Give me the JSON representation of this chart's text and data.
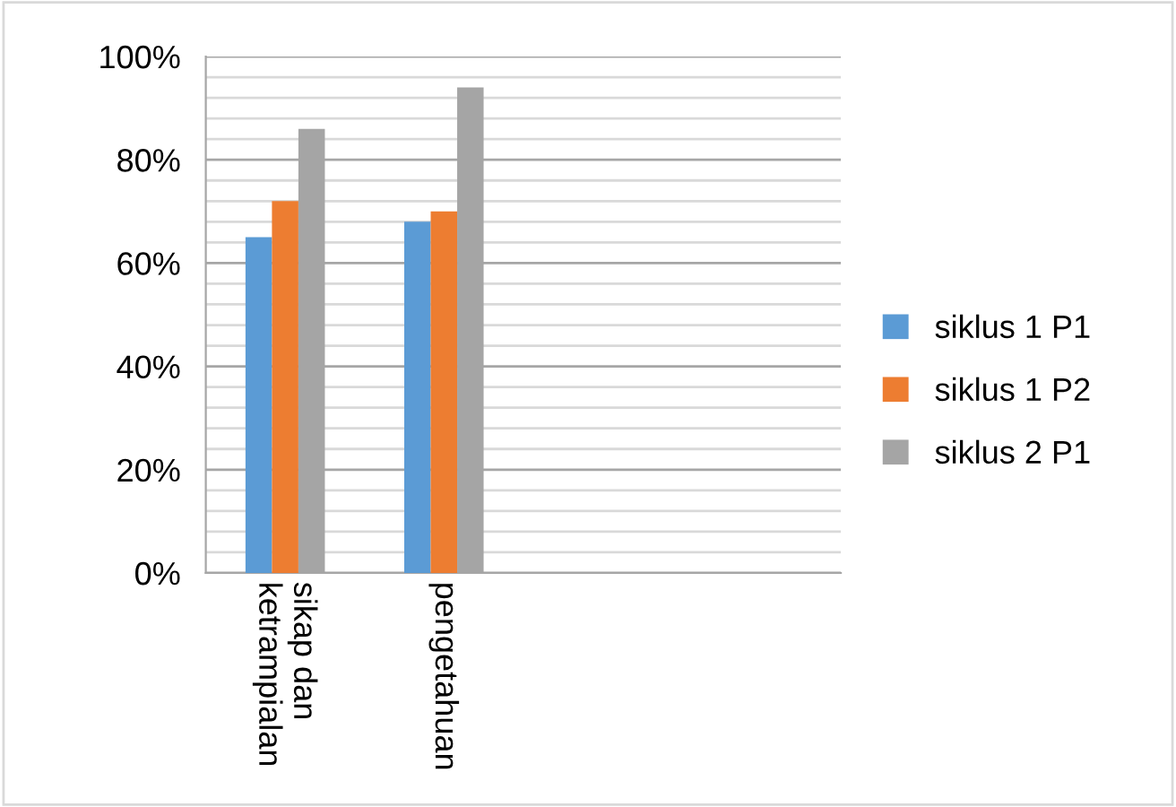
{
  "chart_data": {
    "type": "bar",
    "categories": [
      "sikap dan\nketrampialan",
      "pengetahuan",
      null,
      null
    ],
    "series": [
      {
        "name": "siklus 1 P1",
        "color": "#5b9bd5",
        "values": [
          65,
          68,
          null,
          null
        ]
      },
      {
        "name": "siklus 1 P2",
        "color": "#ed7d31",
        "values": [
          72,
          70,
          null,
          null
        ]
      },
      {
        "name": "siklus 2 P1",
        "color": "#a5a5a5",
        "values": [
          86,
          94,
          null,
          null
        ]
      }
    ],
    "ylim": [
      0,
      100
    ],
    "yticks": [
      {
        "value": 0,
        "label": "0%"
      },
      {
        "value": 4,
        "label": null
      },
      {
        "value": 8,
        "label": null
      },
      {
        "value": 12,
        "label": null
      },
      {
        "value": 16,
        "label": null
      },
      {
        "value": 20,
        "label": "20%"
      },
      {
        "value": 24,
        "label": null
      },
      {
        "value": 28,
        "label": null
      },
      {
        "value": 32,
        "label": null
      },
      {
        "value": 36,
        "label": null
      },
      {
        "value": 40,
        "label": "40%"
      },
      {
        "value": 44,
        "label": null
      },
      {
        "value": 48,
        "label": null
      },
      {
        "value": 52,
        "label": null
      },
      {
        "value": 56,
        "label": null
      },
      {
        "value": 60,
        "label": "60%"
      },
      {
        "value": 64,
        "label": null
      },
      {
        "value": 68,
        "label": null
      },
      {
        "value": 72,
        "label": null
      },
      {
        "value": 76,
        "label": null
      },
      {
        "value": 80,
        "label": "80%"
      },
      {
        "value": 84,
        "label": null
      },
      {
        "value": 88,
        "label": null
      },
      {
        "value": 92,
        "label": null
      },
      {
        "value": 96,
        "label": null
      },
      {
        "value": 100,
        "label": "100%"
      }
    ],
    "grid": "y",
    "legend": "right"
  }
}
